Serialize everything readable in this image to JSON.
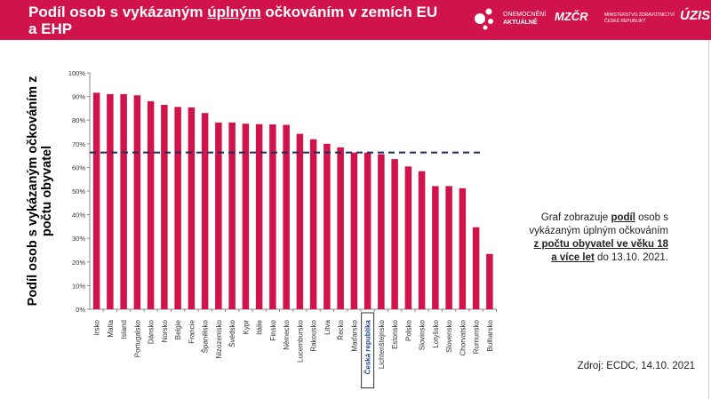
{
  "header": {
    "title_pre": "Podíl osob s vykázaným ",
    "title_underlined": "úplným",
    "title_post": " očkováním v zemích EU a EHP",
    "logo1_line1": "ONEMOCNĚNÍ",
    "logo1_line2": "AKTUÁLNĚ",
    "logo2_text": "MZČR",
    "logo2_line1": "MINISTERSTVO ZDRAVOTNICTVÍ",
    "logo2_line2": "ČESKÉ REPUBLIKY",
    "logo3": "ÚZIS"
  },
  "note": {
    "p1": "Graf zobrazuje ",
    "b1": "podíl",
    "p2": " osob s vykázaným úplným očkováním ",
    "b2": "z počtu obyvatel ve věku 18 a více let",
    "p3": " do 13.10. 2021."
  },
  "source": "Zdroj: ECDC, 14.10. 2021",
  "colors": {
    "bar": "#d0134a",
    "header": "#d0134a",
    "reference_line": "#1f2d5a",
    "highlight_box": "#333333",
    "highlight_text": "#2a4a8a"
  },
  "chart_data": {
    "type": "bar",
    "ylabel": "Podíl osob s vykázaným očkováním z počtu obyvatel",
    "ylim": [
      0,
      100
    ],
    "yticks": [
      "0%",
      "10%",
      "20%",
      "30%",
      "40%",
      "50%",
      "60%",
      "70%",
      "80%",
      "90%",
      "100%"
    ],
    "categories": [
      "Irsko",
      "Malta",
      "Island",
      "Portugalsko",
      "Dánsko",
      "Norsko",
      "Belgie",
      "Francie",
      "Španělsko",
      "Nizozemsko",
      "Švédsko",
      "Kypr",
      "Itálie",
      "Finsko",
      "Německo",
      "Lucembursko",
      "Rakousko",
      "Litva",
      "Řecko",
      "Maďarsko",
      "Česká republika",
      "Lichtenštejnsko",
      "Estonsko",
      "Polsko",
      "Slovinsko",
      "Lotyšsko",
      "Slovensko",
      "Chorvatsko",
      "Rumunsko",
      "Bulharsko"
    ],
    "values": [
      91.6,
      91.0,
      91.0,
      90.5,
      88.0,
      86.5,
      85.6,
      85.4,
      83.0,
      79.0,
      79.0,
      78.5,
      78.3,
      78.2,
      78.0,
      74.2,
      71.9,
      70.0,
      68.5,
      66.3,
      66.3,
      65.6,
      63.5,
      60.4,
      58.4,
      52.1,
      52.1,
      51.2,
      34.7,
      23.4
    ],
    "highlighted_category": "Česká republika",
    "reference_line": {
      "value": 66.3,
      "style": "dashed"
    },
    "grid": false,
    "legend": "none"
  }
}
